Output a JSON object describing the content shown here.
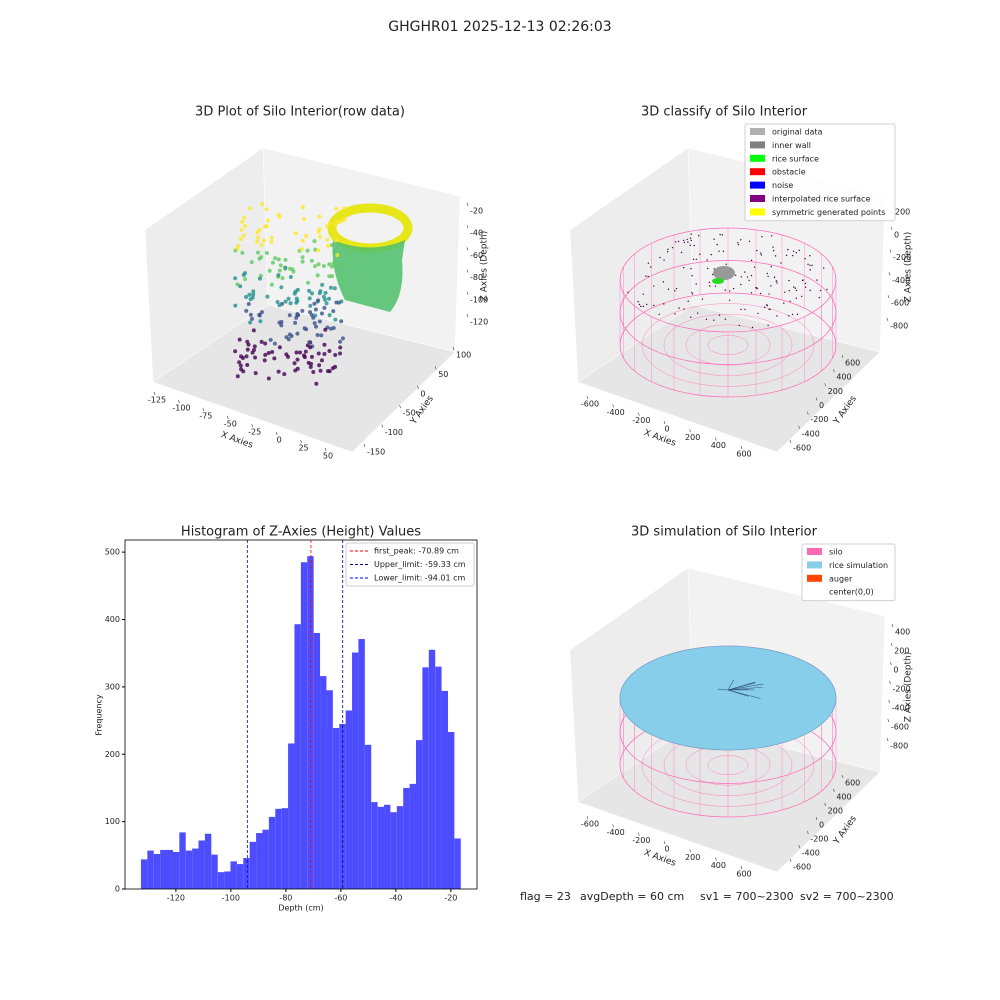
{
  "title": "GHGHR01 2025-12-13 02:26:03",
  "chart_data": [
    {
      "type": "scatter3d",
      "title": "3D Plot of Silo Interior(row data)",
      "xlabel": "X Axies",
      "ylabel": "Y Axies",
      "zlabel": "Z Axies (Depth)",
      "xticks": [
        -125,
        -100,
        -75,
        -50,
        -25,
        0,
        25,
        50
      ],
      "yticks": [
        100,
        50,
        0,
        -50,
        -100,
        -150
      ],
      "zticks": [
        -20,
        -40,
        -60,
        -80,
        -100,
        -120
      ]
    },
    {
      "type": "scatter3d",
      "title": "3D classify of Silo Interior",
      "xlabel": "X Axies",
      "ylabel": "Y Axies",
      "zlabel": "Z Axies (Depth)",
      "xticks": [
        -600,
        -400,
        -200,
        0,
        200,
        400,
        600
      ],
      "yticks": [
        600,
        400,
        200,
        0,
        -200,
        -400,
        -600
      ],
      "zticks": [
        200,
        0,
        -200,
        -400,
        -600,
        -800
      ],
      "legend": [
        {
          "label": "original data",
          "color": "#b0b0b0"
        },
        {
          "label": "inner wall",
          "color": "#808080"
        },
        {
          "label": "rice surface",
          "color": "#00ff00"
        },
        {
          "label": "obstacle",
          "color": "#ff0000"
        },
        {
          "label": "noise",
          "color": "#0000ff"
        },
        {
          "label": "interpolated rice surface",
          "color": "#800080"
        },
        {
          "label": "symmetric generated points",
          "color": "#ffff00"
        }
      ]
    },
    {
      "type": "histogram",
      "title": "Histogram of Z-Axies (Height) Values",
      "xlabel": "Depth (cm)",
      "ylabel": "Frequency",
      "color": "#4d4dff",
      "bins": [
        -132.7,
        -130.37,
        -128.05,
        -125.72,
        -123.4,
        -121.07,
        -118.74,
        -116.42,
        -114.09,
        -111.77,
        -109.44,
        -107.11,
        -104.79,
        -102.46,
        -100.14,
        -97.81,
        -95.48,
        -93.16,
        -90.83,
        -88.51,
        -86.18,
        -83.85,
        -81.53,
        -79.2,
        -76.88,
        -74.55,
        -72.22,
        -69.9,
        -67.57,
        -65.25,
        -62.92,
        -60.59,
        -58.27,
        -55.94,
        -53.62,
        -51.29,
        -48.96,
        -46.64,
        -44.31,
        -41.99,
        -39.66,
        -37.33,
        -35.01,
        -32.68,
        -30.36,
        -28.03,
        -25.7,
        -23.38,
        -21.05,
        -18.73,
        -16.4
      ],
      "counts": [
        44,
        57,
        52,
        58,
        58,
        55,
        84,
        57,
        60,
        72,
        82,
        51,
        25,
        26,
        41,
        37,
        46,
        70,
        83,
        88,
        107,
        119,
        120,
        216,
        393,
        485,
        494,
        380,
        316,
        295,
        239,
        245,
        265,
        351,
        371,
        214,
        129,
        122,
        125,
        114,
        123,
        150,
        156,
        221,
        329,
        355,
        330,
        294,
        233,
        75
      ],
      "xlim": [
        -138.5,
        -10.5
      ],
      "ylim": [
        0,
        518
      ],
      "xticks": [
        -120,
        -100,
        -80,
        -60,
        -40,
        -20
      ],
      "yticks": [
        0,
        100,
        200,
        300,
        400,
        500
      ],
      "lines": [
        {
          "value": -70.89,
          "label": "first_peak: -70.89 cm",
          "color": "#ff0000"
        },
        {
          "value": -59.33,
          "label": "Upper_limit: -59.33 cm",
          "color": "#00008b"
        },
        {
          "value": -94.01,
          "label": "Lower_limit: -94.01 cm",
          "color": "#0000ff"
        }
      ]
    },
    {
      "type": "surface3d",
      "title": "3D simulation of Silo Interior",
      "xlabel": "X Axies",
      "ylabel": "Y Axies",
      "zlabel": "Z Axies (Depth)",
      "xticks": [
        -600,
        -400,
        -200,
        0,
        200,
        400,
        600
      ],
      "yticks": [
        600,
        400,
        200,
        0,
        -200,
        -400,
        -600
      ],
      "zticks": [
        400,
        200,
        0,
        -200,
        -400,
        -600,
        -800
      ],
      "legend": [
        {
          "label": "silo",
          "color": "#ff69b4"
        },
        {
          "label": "rice simulation",
          "color": "#87ceeb"
        },
        {
          "label": "auger",
          "color": "#ff4500"
        },
        {
          "label": "center(0,0)",
          "color": "#ffffff"
        }
      ]
    }
  ],
  "footer": [
    "flag = 23",
    "avgDepth = 60 cm",
    "sv1 = 700~2300",
    "sv2 = 700~2300"
  ]
}
